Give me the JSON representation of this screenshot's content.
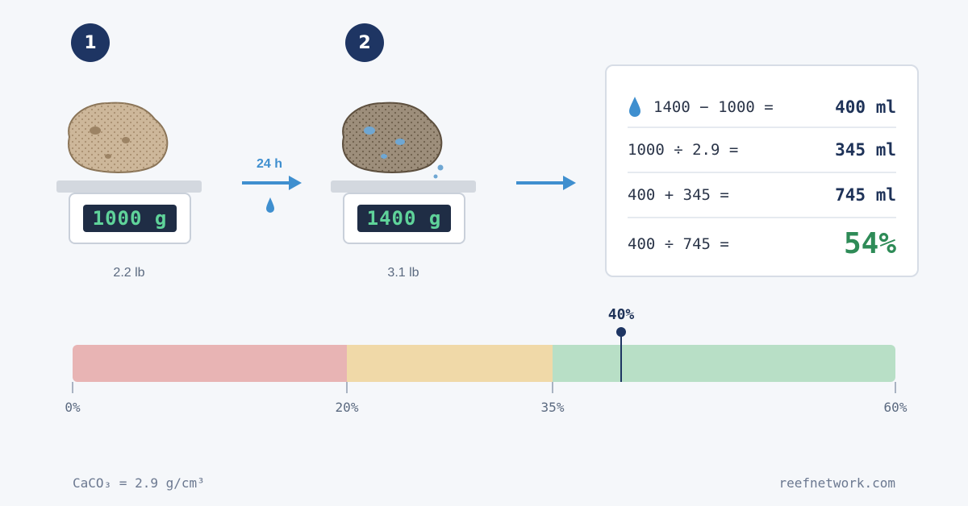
{
  "steps": [
    {
      "number": "1",
      "display": "1000 g",
      "weight_lb": "2.2 lb"
    },
    {
      "number": "2",
      "display": "1400 g",
      "weight_lb": "3.1 lb"
    }
  ],
  "soak_arrow": {
    "label": "24 h"
  },
  "calculation": {
    "rows": [
      {
        "expr": "1400 − 1000 =",
        "result": "400 ml"
      },
      {
        "expr": "1000 ÷ 2.9 =",
        "result": "345 ml"
      },
      {
        "expr": "400 + 345 =",
        "result": "745 ml"
      },
      {
        "expr": "400 ÷ 745 =",
        "result": "54%"
      }
    ]
  },
  "porosity_scale": {
    "zones": [
      {
        "from": 0,
        "to": 20,
        "color": "#e8b4b4"
      },
      {
        "from": 20,
        "to": 35,
        "color": "#f0d9a8"
      },
      {
        "from": 35,
        "to": 60,
        "color": "#b8dfc6"
      }
    ],
    "ticks": [
      "0%",
      "20%",
      "35%",
      "60%"
    ],
    "marker": {
      "label": "40%",
      "value": 40
    }
  },
  "footer": {
    "density": "CaCO₃ = 2.9 g/cm³",
    "site": "reefnetwork.com"
  },
  "colors": {
    "accent": "#1e3563",
    "water": "#3f8fcf",
    "result_green": "#2e8b57"
  }
}
